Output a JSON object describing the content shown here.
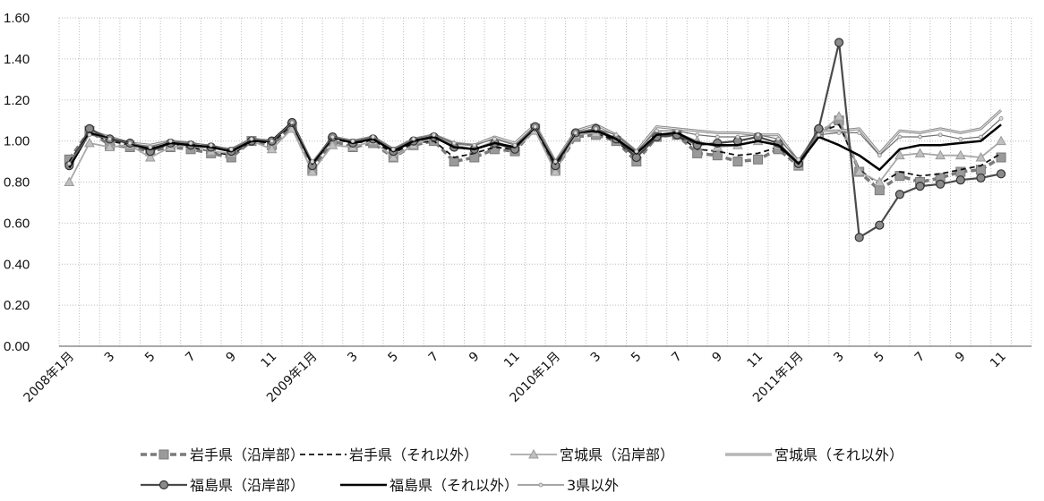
{
  "chart_data": {
    "type": "line",
    "title": "",
    "xlabel": "",
    "ylabel": "",
    "ylim": [
      0,
      1.6
    ],
    "y_ticks": [
      "0.00",
      "0.20",
      "0.40",
      "0.60",
      "0.80",
      "1.00",
      "1.20",
      "1.40",
      "1.60"
    ],
    "x_ticks": [
      "2008年1月",
      "3",
      "5",
      "7",
      "9",
      "11",
      "2009年1月",
      "3",
      "5",
      "7",
      "9",
      "11",
      "2010年1月",
      "3",
      "5",
      "7",
      "9",
      "11",
      "2011年1月",
      "3",
      "5",
      "7",
      "9",
      "11"
    ],
    "grid": "vertical-dotted-and-horizontal",
    "legend_position": "bottom",
    "series": [
      {
        "name": "岩手県（沿岸部）",
        "color": "#7a7a7a",
        "values": [
          0.91,
          1.05,
          0.98,
          0.97,
          0.95,
          0.97,
          0.96,
          0.94,
          0.92,
          1.0,
          0.98,
          1.07,
          0.86,
          1.0,
          0.97,
          0.99,
          0.92,
          0.98,
          1.0,
          0.9,
          0.92,
          0.96,
          0.95,
          1.06,
          0.86,
          1.02,
          1.03,
          1.0,
          0.9,
          1.02,
          1.03,
          0.94,
          0.93,
          0.9,
          0.91,
          0.96,
          0.88,
          1.04,
          1.1,
          0.85,
          0.76,
          0.83,
          0.8,
          0.82,
          0.85,
          0.86,
          0.92
        ]
      },
      {
        "name": "岩手県（それ以外）",
        "color": "#111111",
        "values": [
          0.9,
          1.04,
          1.0,
          0.98,
          0.96,
          0.98,
          0.97,
          0.95,
          0.93,
          1.0,
          0.99,
          1.08,
          0.88,
          1.01,
          0.99,
          1.0,
          0.94,
          0.99,
          1.0,
          0.92,
          0.94,
          0.97,
          0.96,
          1.06,
          0.87,
          1.03,
          1.04,
          1.0,
          0.92,
          1.02,
          1.03,
          0.96,
          0.95,
          0.93,
          0.94,
          0.97,
          0.89,
          1.04,
          1.08,
          0.86,
          0.79,
          0.85,
          0.83,
          0.84,
          0.86,
          0.88,
          0.94
        ]
      },
      {
        "name": "宮城県（沿岸部）",
        "color": "#a8a8a8",
        "values": [
          0.8,
          0.99,
          0.97,
          0.98,
          0.92,
          0.97,
          0.98,
          0.95,
          0.94,
          1.0,
          0.96,
          1.06,
          0.85,
          0.98,
          0.97,
          1.0,
          0.92,
          0.98,
          1.02,
          0.98,
          0.96,
          1.0,
          0.96,
          1.05,
          0.85,
          1.03,
          1.04,
          1.02,
          0.93,
          1.03,
          1.04,
          1.0,
          0.97,
          0.98,
          1.0,
          0.98,
          0.88,
          1.03,
          1.12,
          0.85,
          0.8,
          0.93,
          0.94,
          0.93,
          0.93,
          0.92,
          1.0
        ]
      },
      {
        "name": "宮城県（それ以外）",
        "color": "#9a9a9a",
        "values": [
          0.88,
          1.05,
          1.02,
          0.99,
          0.98,
          1.0,
          0.99,
          0.97,
          0.96,
          1.01,
          1.0,
          1.09,
          0.89,
          1.02,
          1.0,
          1.02,
          0.96,
          1.01,
          1.03,
          0.99,
          0.98,
          1.02,
          0.99,
          1.08,
          0.9,
          1.05,
          1.08,
          1.03,
          0.95,
          1.07,
          1.06,
          1.05,
          1.04,
          1.04,
          1.03,
          1.03,
          0.9,
          1.05,
          1.05,
          1.06,
          0.94,
          1.05,
          1.04,
          1.06,
          1.04,
          1.06,
          1.15
        ]
      },
      {
        "name": "福島県（沿岸部）",
        "color": "#4a4a4a",
        "values": [
          0.88,
          1.06,
          1.01,
          0.99,
          0.95,
          0.99,
          0.98,
          0.97,
          0.95,
          1.0,
          1.0,
          1.09,
          0.88,
          1.02,
          0.99,
          1.01,
          0.95,
          1.0,
          1.02,
          0.97,
          0.96,
          0.99,
          0.96,
          1.07,
          0.88,
          1.04,
          1.06,
          1.01,
          0.92,
          1.02,
          1.03,
          0.98,
          0.99,
          1.0,
          1.02,
          0.99,
          0.89,
          1.06,
          1.48,
          0.53,
          0.59,
          0.74,
          0.78,
          0.79,
          0.81,
          0.82,
          0.84
        ]
      },
      {
        "name": "福島県（それ以外）",
        "color": "#000000",
        "values": [
          0.87,
          1.04,
          1.01,
          0.99,
          0.96,
          0.99,
          0.98,
          0.97,
          0.95,
          1.0,
          1.0,
          1.09,
          0.89,
          1.02,
          0.99,
          1.01,
          0.95,
          1.0,
          1.02,
          0.97,
          0.96,
          0.99,
          0.97,
          1.07,
          0.89,
          1.04,
          1.05,
          1.01,
          0.94,
          1.03,
          1.04,
          0.99,
          0.98,
          0.98,
          1.0,
          0.98,
          0.89,
          1.02,
          0.98,
          0.93,
          0.86,
          0.96,
          0.98,
          0.98,
          0.99,
          1.0,
          1.08
        ]
      },
      {
        "name": "3県以外",
        "color": "#6f6f6f",
        "values": [
          0.89,
          1.03,
          1.01,
          0.99,
          0.97,
          1.0,
          0.99,
          0.98,
          0.96,
          1.01,
          1.0,
          1.09,
          0.9,
          1.02,
          1.0,
          1.02,
          0.96,
          1.01,
          1.03,
          0.99,
          0.98,
          1.01,
          0.98,
          1.07,
          0.9,
          1.04,
          1.06,
          1.03,
          0.95,
          1.05,
          1.05,
          1.03,
          1.02,
          1.02,
          1.03,
          1.01,
          0.91,
          1.03,
          1.04,
          1.04,
          0.93,
          1.02,
          1.02,
          1.03,
          1.01,
          1.02,
          1.11
        ]
      }
    ]
  }
}
